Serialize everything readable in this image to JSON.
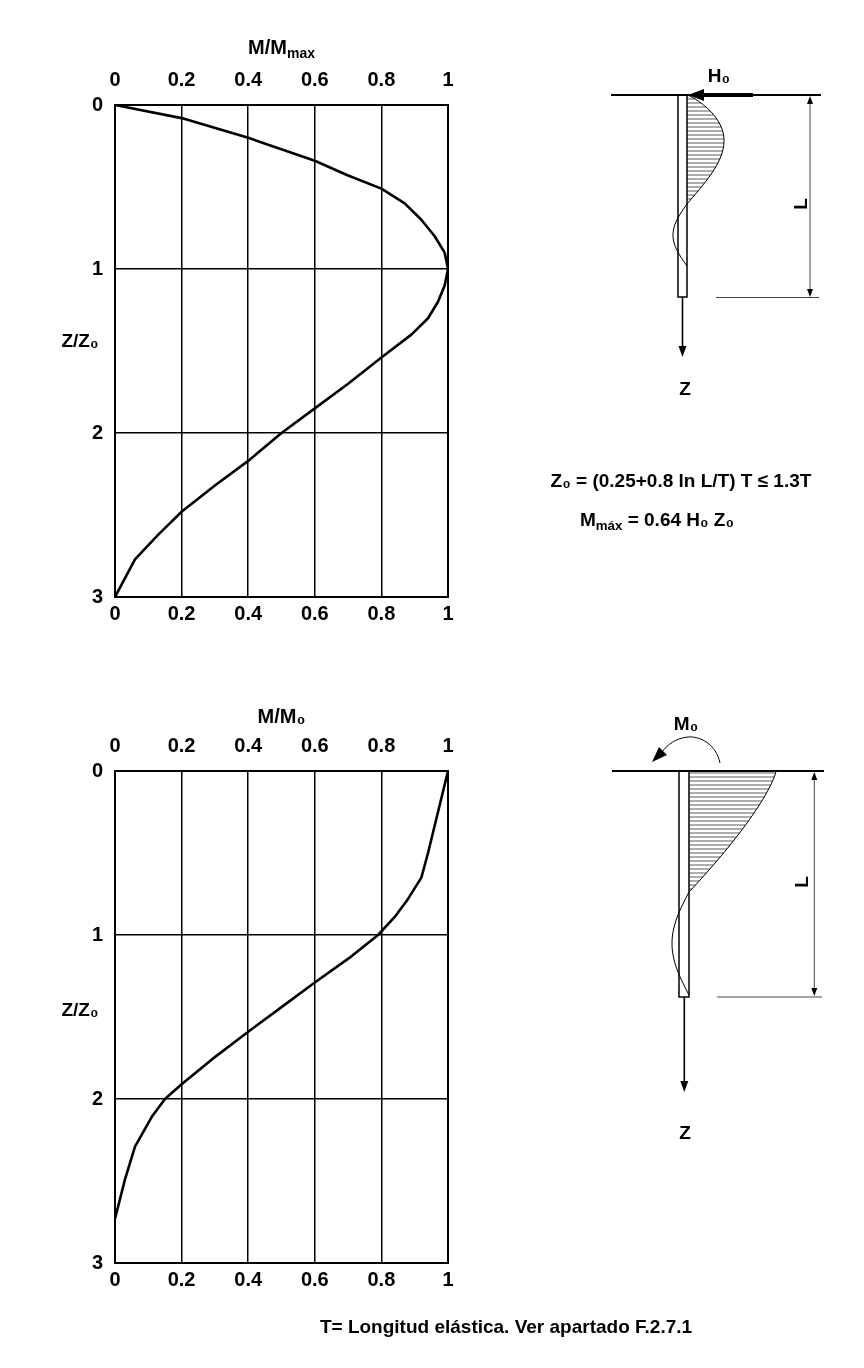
{
  "chart_data": [
    {
      "type": "line",
      "x2label": "M/M$_{max}$",
      "ylabel": "Z/Z₀",
      "xlim": [
        0,
        1
      ],
      "xticks": [
        0,
        0.2,
        0.4,
        0.6,
        0.8,
        1
      ],
      "x2lim": [
        0,
        1
      ],
      "x2ticks": [
        0,
        0.2,
        0.4,
        0.6,
        0.8,
        1
      ],
      "ylim": [
        3,
        0
      ],
      "yticks": [
        0,
        1,
        2,
        3
      ],
      "grid": true,
      "marker": "none",
      "line_style": "solid",
      "color": "#000000",
      "x": [
        0,
        0.2,
        0.4,
        0.6,
        0.7,
        0.8,
        0.87,
        0.92,
        0.96,
        0.99,
        1,
        0.99,
        0.97,
        0.94,
        0.89,
        0.8,
        0.7,
        0.6,
        0.5,
        0.4,
        0.3,
        0.2,
        0.13,
        0.06,
        0
      ],
      "values": [
        0,
        0.08,
        0.2,
        0.34,
        0.43,
        0.51,
        0.6,
        0.7,
        0.8,
        0.9,
        1,
        1.1,
        1.2,
        1.3,
        1.4,
        1.54,
        1.7,
        1.85,
        2,
        2.17,
        2.32,
        2.48,
        2.62,
        2.77,
        3
      ],
      "annotations": [
        "H₀",
        "L",
        "Z",
        "Z₀ = (0.25+0.8 ln L/T) T ≤ 1.3T",
        "M$_{máx}$ = 0.64 H₀ Z₀"
      ]
    },
    {
      "type": "line",
      "x2label": "M/M₀",
      "ylabel": "Z/Z₀",
      "xlim": [
        0,
        1
      ],
      "xticks": [
        0,
        0.2,
        0.4,
        0.6,
        0.8,
        1
      ],
      "x2lim": [
        0,
        1
      ],
      "x2ticks": [
        0,
        0.2,
        0.4,
        0.6,
        0.8,
        1
      ],
      "ylim": [
        3,
        0
      ],
      "yticks": [
        0,
        1,
        2,
        3
      ],
      "grid": true,
      "marker": "none",
      "line_style": "solid",
      "color": "#000000",
      "x": [
        1,
        0.97,
        0.94,
        0.92,
        0.88,
        0.84,
        0.79,
        0.71,
        0.6,
        0.5,
        0.4,
        0.29,
        0.2,
        0.15,
        0.11,
        0.06,
        0.03,
        0
      ],
      "values": [
        0,
        0.25,
        0.5,
        0.65,
        0.78,
        0.89,
        1,
        1.13,
        1.29,
        1.44,
        1.59,
        1.76,
        1.91,
        2,
        2.11,
        2.29,
        2.49,
        2.73
      ],
      "annotations": [
        "M₀",
        "L",
        "Z",
        "T= Longitud elástica. Ver apartado F.2.7.1"
      ]
    }
  ]
}
